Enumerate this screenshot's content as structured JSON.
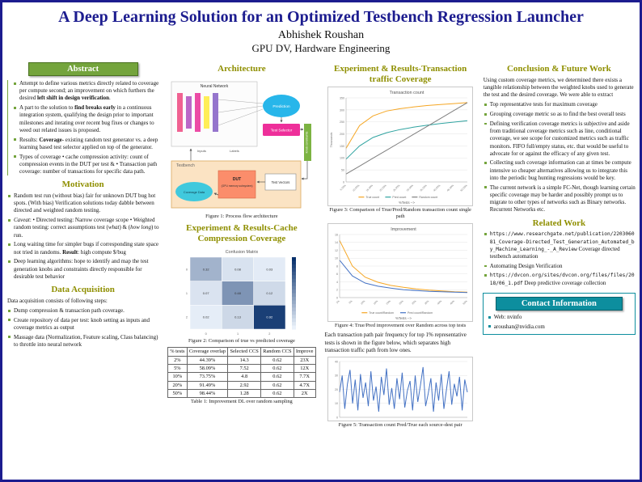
{
  "header": {
    "title": "A Deep Learning Solution for an Optimized Testbench Regression Launcher",
    "author": "Abhishek Roushan",
    "affiliation": "GPU DV, Hardware Engineering"
  },
  "abstract": {
    "title": "Abstract",
    "items": [
      "Attempt to define various metrics directly related to coverage per compute second; an improvement on which furthers the desired **left shift in design verification**.",
      "A part to the solution to **find breaks early** in a continuous integration system, qualifying the design prior to important milestones and iterating over recent bug fixes or changes to weed out related issues is proposed.",
      "Results: **Coverage**- existing random test generator vs. a deep learning based test selector applied on top of the generator.",
      "Types of coverage • cache compression activity: count of compression events in the DUT per test & • Transaction path coverage: number of transactions for specific data path."
    ]
  },
  "motivation": {
    "title": "Motivation",
    "items": [
      "Random test run (without bias) fair for unknown DUT bug hot spots. (With bias) Verification solutions today dabble between directed and weighted random testing.",
      "*Caveat*: • Directed testing: Narrow coverage scope • Weighted random testing: correct assumptions test (*what*) & (*how long*) to run.",
      "Long waiting time for simpler bugs if corresponding state space not tried in randoms. **Result**: high compute $/bug",
      "Deep learning algorithms: hope to identify and map the test generation knobs and constraints directly responsible for desirable test behavior"
    ]
  },
  "data_acquisition": {
    "title": "Data Acquisition",
    "intro": "Data acquisition consists of following steps:",
    "items": [
      "Dump compression & transaction path coverage.",
      "Create repository of data per test: knob setting as inputs and coverage metrics as output",
      "Massage data (Normalization, Feature scaling, Class balancing) to throttle into neural network"
    ]
  },
  "architecture": {
    "title": "Architecture",
    "fig1": {
      "caption": "Figure 1: Process flow architecture",
      "neural_network": "Neural Network",
      "prediction": "Prediction",
      "test_selector": "Test Selector",
      "train": "Train",
      "inputs": "Inputs",
      "labels_text": "Labels",
      "knob_constraints": "Knob constraints",
      "testbench": "Testbench",
      "dut": "DUT",
      "dut_sub": "(GPU memory subsystem)",
      "test_vectors": "Test Vectors",
      "coverage_data": "Coverage Data"
    }
  },
  "cache_results": {
    "title": "Experiment & Results-Cache Compression Coverage",
    "fig2_caption": "Figure 2: Comparison of true vs predicted coverage",
    "table": {
      "headers": [
        "% tests",
        "Coverage overlap",
        "Selected CCS",
        "Random CCS",
        "Improve"
      ],
      "rows": [
        [
          "2%",
          "44.39%",
          "14.3",
          "0.62",
          "23X"
        ],
        [
          "5%",
          "58.09%",
          "7.52",
          "0.62",
          "12X"
        ],
        [
          "10%",
          "73.75%",
          "4.8",
          "0.62",
          "7.7X"
        ],
        [
          "20%",
          "91.49%",
          "2.92",
          "0.62",
          "4.7X"
        ],
        [
          "50%",
          "98.44%",
          "1.28",
          "0.62",
          "2X"
        ]
      ]
    },
    "table_caption": "Table 1: Improvement DL over random sampling"
  },
  "transaction_results": {
    "title": "Experiment & Results-Transaction traffic Coverage",
    "fig3_caption": "Figure 3: Comparison of True/Pred/Random transaction count single path",
    "fig4_caption": "Figure 4: True/Pred improvement over Random across top tests",
    "paragraph": "Each transaction path pair frequency for top 1% representative tests is shown in the figure below, which separates high transaction traffic path from low ones.",
    "fig5_caption": "Figure 5: Transaction count Pred/True each source-dest pair"
  },
  "conclusion": {
    "title": "Conclusion & Future Work",
    "intro": "Using custom coverage metrics, we determined there exists a tangible relationship between the weighted knobs used to generate the test and the desired coverage. We were able to extract",
    "items": [
      "Top representative tests for maximum coverage",
      "Grouping coverage metric so as to find the best overall tests",
      "Defining verification coverage metrics is subjective and aside from traditional coverage metrics such as line, conditional coverage, we see scope for customized metrics such as traffic monitors. FIFO full/empty status, etc. that would be useful to advocate for or against the efficacy of any given test.",
      "Collecting such coverage information can at times be compute intensive so cheaper alternatives allowing us to integrate this into the periodic bug hunting regressions would be key.",
      "The current network is a simple FC-Net, though learning certain specific coverage may be harder and possibly prompt us to migrate to other types of networks such as Binary networks. Recurrent Networks etc."
    ]
  },
  "related_work": {
    "title": "Related Work",
    "items": [
      {
        "url": "https://www.researchgate.net/publication/220306081_Coverage-Directed_Test_Generation_Automated_by_Machine_Learning_-_A_Review",
        "desc": "Coverage directed testbench automation"
      },
      {
        "url": "",
        "desc": "Automating Design Verification"
      },
      {
        "url": "https://dvcon.org/sites/dvcon.org/files/files/2018/06_1.pdf",
        "desc": "Deep predictive coverage collection"
      }
    ]
  },
  "contact": {
    "title": "Contact Information",
    "items": [
      "Web: nvinfo",
      "aroushan@nvidia.com"
    ]
  },
  "chart_data": [
    {
      "id": "fig2",
      "type": "heatmap",
      "title": "Confusion Matrix",
      "row_labels": [
        "0",
        "1",
        "2"
      ],
      "col_labels": [
        "0",
        "1",
        "2"
      ],
      "matrix": [
        [
          0.32,
          0.08,
          0.03
        ],
        [
          0.07,
          0.48,
          0.12
        ],
        [
          0.02,
          0.13,
          0.92
        ]
      ],
      "scale": [
        "#eaf1fa",
        "#08306b"
      ]
    },
    {
      "id": "fig3",
      "type": "line",
      "title": "Transaction count",
      "ylabel": "Thousands",
      "xlabel": "%Tests -->",
      "x": [
        "5.00%",
        "10.00%",
        "15.00%",
        "20.00%",
        "25.00%",
        "30.00%",
        "35.00%",
        "40.00%",
        "45.00%",
        "50.00%"
      ],
      "ylim": [
        0,
        350
      ],
      "yticks": [
        0,
        50,
        100,
        150,
        200,
        250,
        300,
        350
      ],
      "legend_position": "bottom",
      "series": [
        {
          "name": "True count",
          "color": "#f5a623",
          "values": [
            140,
            235,
            275,
            295,
            305,
            312,
            318,
            322,
            326,
            330
          ]
        },
        {
          "name": "Pred count",
          "color": "#2fa3a0",
          "values": [
            95,
            150,
            185,
            205,
            218,
            228,
            236,
            243,
            249,
            255
          ]
        },
        {
          "name": "Random count",
          "color": "#7f7f7f",
          "values": [
            33,
            66,
            99,
            132,
            165,
            198,
            231,
            264,
            297,
            330
          ]
        }
      ]
    },
    {
      "id": "fig4",
      "type": "line",
      "title": "Improvement",
      "ylabel": "",
      "xlabel": "%Tests -->",
      "x": [
        "1%",
        "5%",
        "10%",
        "15%",
        "20%",
        "25%",
        "30%",
        "35%",
        "40%",
        "45%",
        "50%"
      ],
      "ylim": [
        0,
        16
      ],
      "yticks": [
        0,
        2,
        4,
        6,
        8,
        10,
        12,
        14,
        16
      ],
      "legend_position": "bottom",
      "series": [
        {
          "name": "True count/Random",
          "color": "#f5a623",
          "values": [
            14.5,
            8,
            5.2,
            3.9,
            3.1,
            2.6,
            2.2,
            1.9,
            1.7,
            1.5,
            1.4
          ]
        },
        {
          "name": "Pred count/Random",
          "color": "#4472c4",
          "values": [
            9.5,
            5.5,
            3.7,
            2.9,
            2.4,
            2.0,
            1.8,
            1.6,
            1.5,
            1.4,
            1.3
          ]
        }
      ]
    },
    {
      "id": "fig5",
      "type": "line",
      "title": "",
      "ylim": [
        0,
        40
      ],
      "yticks": [
        0,
        10,
        20,
        30,
        40
      ],
      "series": [
        {
          "name": "Transaction count",
          "color": "#4472c4",
          "values": [
            18,
            30,
            6,
            24,
            34,
            10,
            27,
            5,
            31,
            14,
            25,
            8,
            33,
            12,
            22,
            4,
            29,
            16,
            35,
            9,
            21,
            6,
            28,
            13,
            32,
            7,
            19,
            26,
            5,
            30,
            11,
            23,
            36,
            8,
            17,
            28,
            4,
            25,
            12,
            31,
            6,
            20,
            33,
            9,
            24,
            15,
            29,
            5,
            27,
            18
          ]
        }
      ]
    }
  ]
}
